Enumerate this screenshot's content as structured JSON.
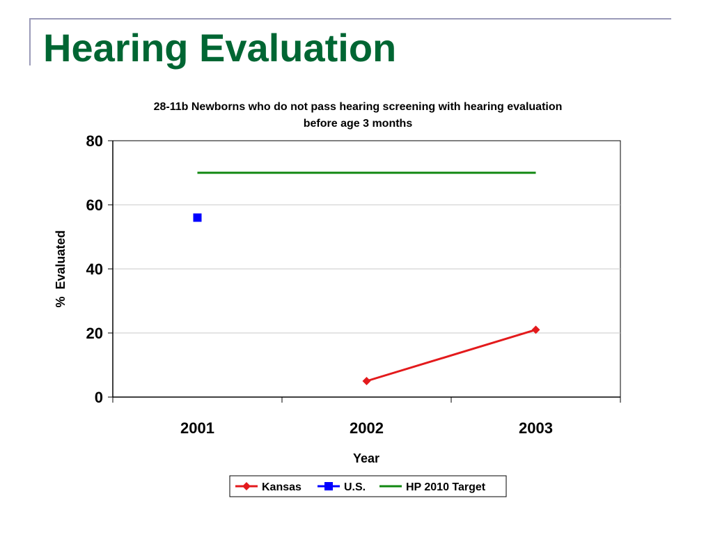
{
  "slide": {
    "title": "Hearing Evaluation"
  },
  "chart_data": {
    "type": "line",
    "title_lines": [
      "28-11b Newborns who do not pass hearing screening with hearing evaluation",
      "before age 3 months"
    ],
    "xlabel": "Year",
    "ylabel": "%  Evaluated",
    "categories": [
      "2001",
      "2002",
      "2003"
    ],
    "ylim": [
      0,
      80
    ],
    "yticks": [
      0,
      20,
      40,
      60,
      80
    ],
    "grid": true,
    "legend_position": "bottom",
    "series": [
      {
        "name": "Kansas",
        "values": [
          null,
          5,
          21
        ],
        "color": "#e31a1c",
        "marker": "diamond"
      },
      {
        "name": "U.S.",
        "values": [
          56,
          null,
          null
        ],
        "color": "#0000ff",
        "marker": "square"
      },
      {
        "name": "HP 2010 Target",
        "values": [
          70,
          70,
          70
        ],
        "color": "#118811",
        "marker": "none"
      }
    ]
  }
}
